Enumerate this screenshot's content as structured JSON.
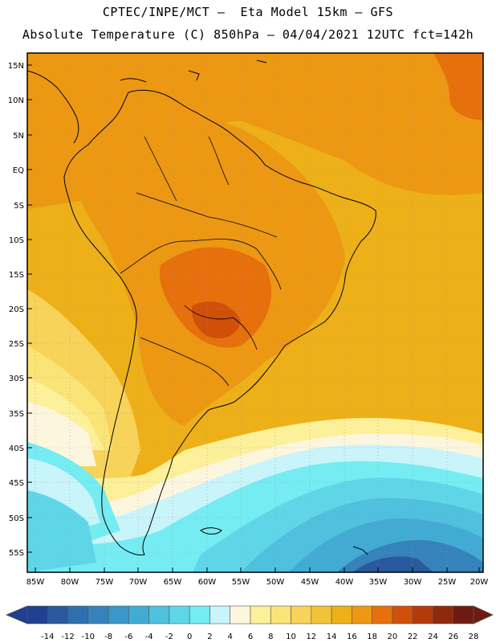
{
  "header": {
    "line1": "CPTEC/INPE/MCT —  Eta Model 15km — GFS",
    "line2": "Absolute Temperature (C) 850hPa — 04/04/2021 12UTC fct=142h"
  },
  "axes": {
    "lat_labels": [
      "15N",
      "10N",
      "5N",
      "EQ",
      "5S",
      "10S",
      "15S",
      "20S",
      "25S",
      "30S",
      "35S",
      "40S",
      "45S",
      "50S",
      "55S"
    ],
    "lon_labels": [
      "85W",
      "80W",
      "75W",
      "70W",
      "65W",
      "60W",
      "55W",
      "50W",
      "45W",
      "40W",
      "35W",
      "30W",
      "25W",
      "20W"
    ]
  },
  "colorbar": {
    "ticks": [
      "-14",
      "-12",
      "-10",
      "-8",
      "-6",
      "-4",
      "-2",
      "0",
      "2",
      "4",
      "6",
      "8",
      "10",
      "12",
      "14",
      "16",
      "18",
      "20",
      "22",
      "24",
      "26",
      "28"
    ],
    "colors": [
      "#1f3f8f",
      "#2a5a9e",
      "#2f6fae",
      "#3583ba",
      "#3a97c7",
      "#42abd4",
      "#4fc0de",
      "#5fd6e8",
      "#74ecf2",
      "#c8f4fa",
      "#fdf6de",
      "#fdf09a",
      "#fbe476",
      "#f8d35a",
      "#f2c238",
      "#eeb018",
      "#ec9812",
      "#e6700c",
      "#d0500a",
      "#b43a0a",
      "#8e2a0c",
      "#6e1a10"
    ]
  }
}
